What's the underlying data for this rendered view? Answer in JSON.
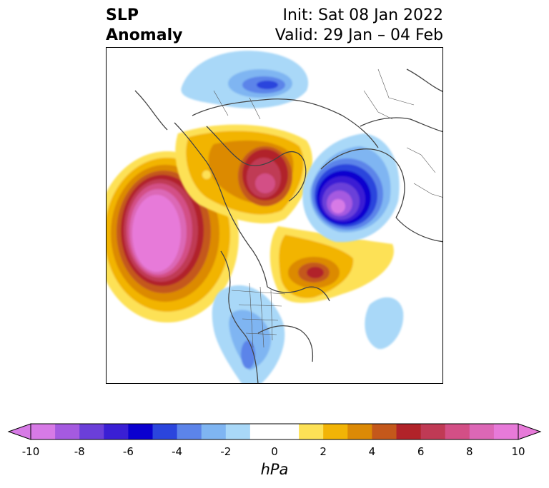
{
  "title": {
    "left_line1": "SLP",
    "left_line2": "Anomaly",
    "right_line1": "Init: Sat 08 Jan 2022",
    "right_line2": "Valid: 29 Jan – 04 Feb"
  },
  "map": {
    "projection": "polar-stereographic",
    "region": "Northern Hemisphere"
  },
  "colorbar": {
    "label": "hPa",
    "ticks": [
      "-10",
      "-8",
      "-6",
      "-4",
      "-2",
      "0",
      "2",
      "4",
      "6",
      "8",
      "10"
    ],
    "colors": [
      "#d77ae6",
      "#a55ae0",
      "#6b3fd9",
      "#3a1fd4",
      "#0a00cf",
      "#2b45dd",
      "#5c84e9",
      "#7fb5f2",
      "#a9d8f8",
      "#ffffff",
      "#ffffff",
      "#fde156",
      "#f2b406",
      "#dc8a06",
      "#c4581b",
      "#b12329",
      "#c03a55",
      "#d34f86",
      "#dc67b6",
      "#e77ad9"
    ]
  }
}
